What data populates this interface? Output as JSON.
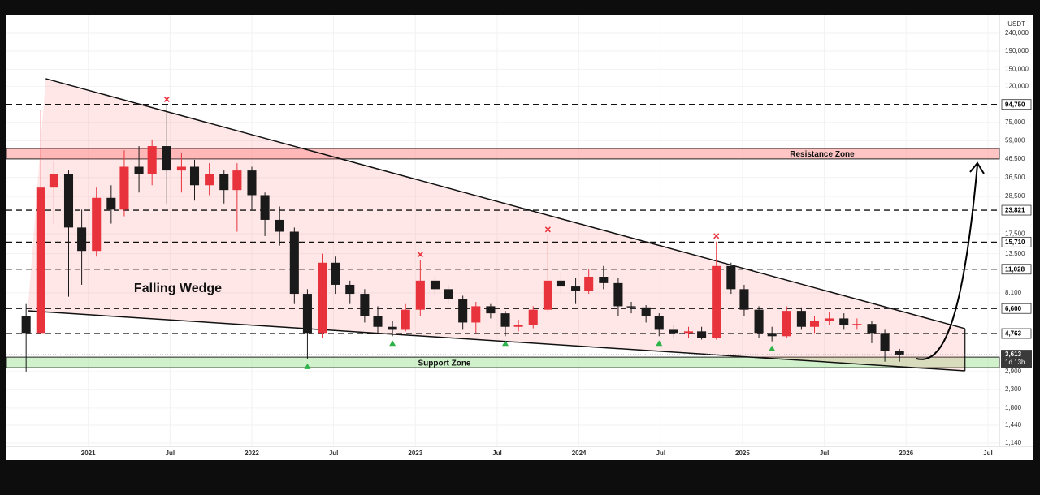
{
  "chart_data": {
    "type": "candlestick",
    "axis_unit": "USDT",
    "log_scale": true,
    "grid": true,
    "up_color": "#e8323c",
    "down_color": "#1a1a1a",
    "xlim": [
      2020.5,
      2026.57
    ],
    "xticks": [
      2021,
      {
        "value": 2021.5,
        "label": "Jul"
      },
      2022,
      {
        "value": 2022.5,
        "label": "Jul"
      },
      2023,
      {
        "value": 2023.5,
        "label": "Jul"
      },
      2024,
      {
        "value": 2024.5,
        "label": "Jul"
      },
      2025,
      {
        "value": 2025.5,
        "label": "Jul"
      },
      2026,
      {
        "value": 2026.5,
        "label": "Jul"
      }
    ],
    "ylim": [
      1093,
      306000
    ],
    "yticks": [
      {
        "value": 240000,
        "label": "240,000"
      },
      {
        "value": 190000,
        "label": "190,000"
      },
      {
        "value": 150000,
        "label": "150,000"
      },
      {
        "value": 120000,
        "label": "120,000"
      },
      {
        "value": 75000,
        "label": "75,000"
      },
      {
        "value": 59000,
        "label": "59,000"
      },
      {
        "value": 46500,
        "label": "46,500"
      },
      {
        "value": 36500,
        "label": "36,500"
      },
      {
        "value": 28500,
        "label": "28,500"
      },
      {
        "value": 17500,
        "label": "17,500"
      },
      {
        "value": 13500,
        "label": "13,500"
      },
      {
        "value": 8100,
        "label": "8,100"
      },
      {
        "value": 2900,
        "label": "2,900"
      },
      {
        "value": 2300,
        "label": "2,300"
      },
      {
        "value": 1800,
        "label": "1,800"
      },
      {
        "value": 1440,
        "label": "1,440"
      },
      {
        "value": 1140,
        "label": "1,140"
      }
    ],
    "levels": [
      {
        "value": 94750,
        "label": "94,750"
      },
      {
        "value": 23821,
        "label": "23,821"
      },
      {
        "value": 15710,
        "label": "15,710"
      },
      {
        "value": 11028,
        "label": "11,028"
      },
      {
        "value": 6600,
        "label": "6,600"
      },
      {
        "value": 4763,
        "label": "4,763"
      }
    ],
    "price_label": {
      "value": 3613,
      "label": "3,613",
      "countdown": "1d 13h"
    },
    "resistance_zone": [
      46500,
      53300
    ],
    "support_zone": [
      3050,
      3500
    ],
    "annotations": {
      "wedge_label": "Falling Wedge",
      "resistance_label": "Resistance Zone",
      "support_label": "Support Zone"
    },
    "wedge": {
      "upper": {
        "x": [
          2020.74,
          2026.36
        ],
        "y": [
          132600,
          5080
        ]
      },
      "lower": {
        "x": [
          2020.63,
          2026.36
        ],
        "y": [
          6410,
          2927
        ]
      }
    },
    "x": [
      2020.62,
      2020.71,
      2020.79,
      2020.88,
      2020.96,
      2021.05,
      2021.14,
      2021.22,
      2021.31,
      2021.39,
      2021.48,
      2021.57,
      2021.65,
      2021.74,
      2021.83,
      2021.91,
      2022.0,
      2022.08,
      2022.17,
      2022.26,
      2022.34,
      2022.43,
      2022.51,
      2022.6,
      2022.69,
      2022.77,
      2022.86,
      2022.94,
      2023.03,
      2023.12,
      2023.2,
      2023.29,
      2023.37,
      2023.46,
      2023.55,
      2023.63,
      2023.72,
      2023.81,
      2023.89,
      2023.98,
      2024.06,
      2024.15,
      2024.24,
      2024.32,
      2024.41,
      2024.49,
      2024.58,
      2024.67,
      2024.75,
      2024.84,
      2024.93,
      2025.01,
      2025.1,
      2025.18,
      2025.27,
      2025.36,
      2025.44,
      2025.53,
      2025.62,
      2025.7,
      2025.79,
      2025.87,
      2025.96
    ],
    "open": [
      6000,
      4800,
      32000,
      38000,
      19000,
      14000,
      28000,
      24000,
      42000,
      38000,
      55000,
      40000,
      42000,
      33000,
      38000,
      31000,
      40000,
      29000,
      21000,
      18000,
      8000,
      4800,
      12000,
      9000,
      8000,
      6000,
      5200,
      5000,
      6500,
      9500,
      8500,
      7500,
      5500,
      6800,
      6200,
      5200,
      5300,
      6500,
      9500,
      8800,
      8300,
      10000,
      9200,
      6800,
      6700,
      6000,
      5000,
      4800,
      4900,
      4500,
      11500,
      8500,
      6500,
      4800,
      4600,
      6400,
      5200,
      5600,
      5800,
      5300,
      5400,
      4800,
      3800
    ],
    "high": [
      7000,
      88000,
      45000,
      40000,
      24000,
      32000,
      33000,
      52000,
      55000,
      60000,
      94000,
      50000,
      46000,
      44000,
      40000,
      44000,
      42000,
      30000,
      25000,
      19000,
      8500,
      13500,
      13000,
      9500,
      8500,
      6800,
      5600,
      7000,
      12400,
      10000,
      9000,
      7800,
      7200,
      7000,
      6400,
      5700,
      6800,
      17200,
      10500,
      9800,
      11000,
      11500,
      9800,
      7200,
      6900,
      6200,
      5300,
      5200,
      5200,
      15800,
      12000,
      9000,
      6800,
      5200,
      6800,
      6700,
      6000,
      6300,
      6200,
      5800,
      5600,
      5000,
      3900
    ],
    "low": [
      2900,
      4800,
      20000,
      7700,
      9000,
      13000,
      20000,
      22000,
      30000,
      33000,
      26000,
      30000,
      27000,
      29000,
      26000,
      18000,
      24000,
      17000,
      15000,
      7000,
      3400,
      4500,
      8000,
      7000,
      5500,
      4800,
      4600,
      4900,
      6000,
      7800,
      7000,
      5000,
      4800,
      5800,
      4600,
      4900,
      5100,
      6300,
      8000,
      7000,
      8000,
      8500,
      6000,
      6200,
      5500,
      4600,
      4500,
      4500,
      4400,
      4400,
      8000,
      6000,
      4500,
      4300,
      4500,
      5000,
      4800,
      5300,
      5000,
      5000,
      4200,
      3300,
      3300
    ],
    "close": [
      4800,
      32000,
      38000,
      19000,
      14000,
      28000,
      24000,
      42000,
      38000,
      55000,
      40000,
      42000,
      33000,
      38000,
      31000,
      40000,
      29000,
      21000,
      18000,
      8000,
      4800,
      12000,
      9000,
      8000,
      6000,
      5200,
      5000,
      6500,
      9500,
      8500,
      7500,
      5500,
      6800,
      6200,
      5200,
      5300,
      6500,
      9500,
      8800,
      8300,
      10000,
      9200,
      6800,
      6700,
      6000,
      5000,
      4800,
      4900,
      4500,
      11500,
      8500,
      6500,
      4800,
      4600,
      6400,
      5200,
      5600,
      5800,
      5300,
      5400,
      4800,
      3800,
      3613
    ],
    "cross_markers": [
      10,
      28,
      37,
      49
    ],
    "triangle_markers": [
      20,
      26,
      34,
      45,
      53
    ]
  }
}
